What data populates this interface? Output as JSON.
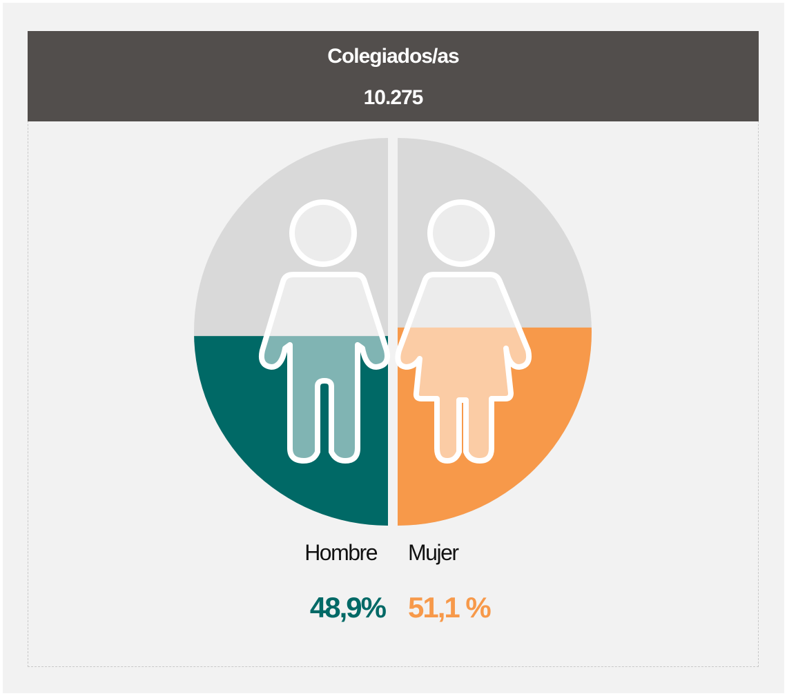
{
  "chart_data": {
    "type": "gender-fill",
    "title": "Colegiados/as",
    "subtitle": "10.275",
    "categories": [
      "Hombre",
      "Mujer"
    ],
    "values": [
      48.9,
      51.1
    ],
    "value_labels": [
      "48,9%",
      "51,1 %"
    ],
    "colors": [
      "#006966",
      "#f7994a"
    ],
    "ylim": [
      0,
      100
    ]
  }
}
